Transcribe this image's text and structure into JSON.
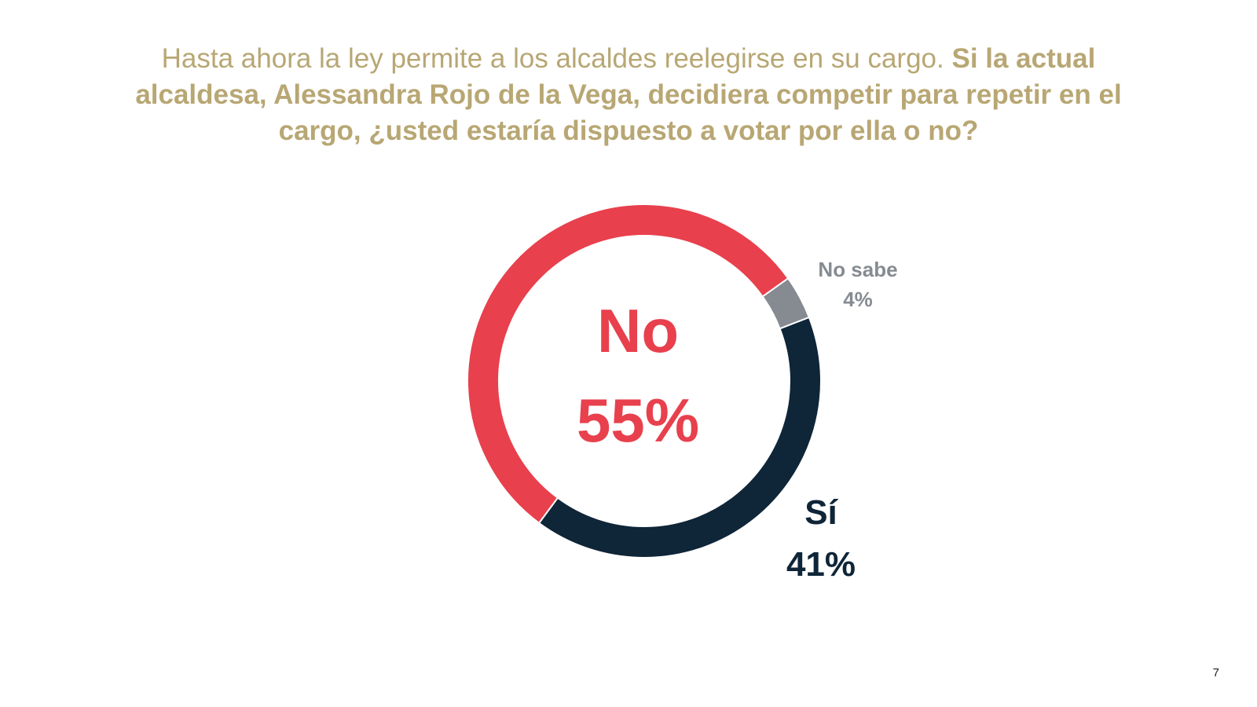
{
  "question": {
    "intro": "Hasta ahora la ley permite a los alcaldes reelegirse en su cargo.",
    "bold": "Si la actual alcaldesa, Alessandra Rojo de la Vega, decidiera competir para repetir en el cargo, ¿usted estaría dispuesto a votar por ella o no?"
  },
  "chart_data": {
    "type": "pie",
    "style": "donut",
    "categories": [
      "No",
      "No sabe",
      "Sí"
    ],
    "values": [
      55,
      4,
      41
    ],
    "value_labels": [
      "55%",
      "4%",
      "41%"
    ],
    "colors": [
      "#e8404d",
      "#868b92",
      "#0f2538"
    ],
    "title": "",
    "legend": "none"
  },
  "colors": {
    "title": "#b8a774",
    "background": "#ffffff"
  },
  "page_number": "7"
}
